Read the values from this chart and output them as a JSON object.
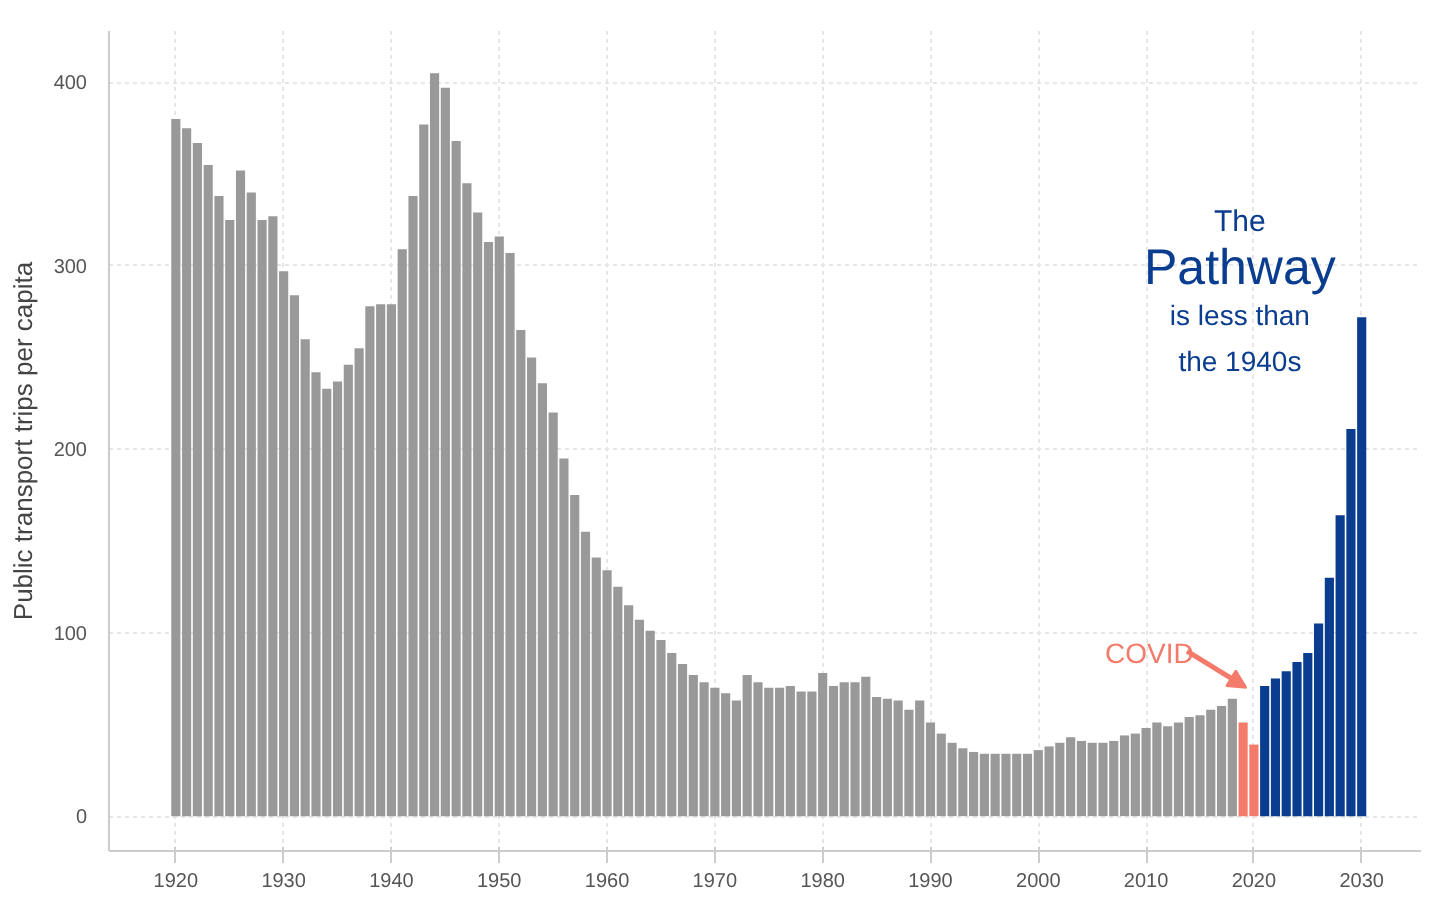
{
  "chart_data": {
    "type": "bar",
    "ylabel": "Public transport trips per capita",
    "xlim": [
      1913.8,
      2035.5
    ],
    "xticks": [
      1920,
      1930,
      1940,
      1950,
      1960,
      1970,
      1980,
      1990,
      2000,
      2010,
      2020,
      2030
    ],
    "ylim": [
      -19,
      428
    ],
    "yticks": [
      0,
      100,
      200,
      300,
      400
    ],
    "grid": true,
    "series": [
      {
        "color": "#999999",
        "x": [
          1920,
          1921,
          1922,
          1923,
          1924,
          1925,
          1926,
          1927,
          1928,
          1929,
          1930,
          1931,
          1932,
          1933,
          1934,
          1935,
          1936,
          1937,
          1938,
          1939,
          1940,
          1941,
          1942,
          1943,
          1944,
          1945,
          1946,
          1947,
          1948,
          1949,
          1950,
          1951,
          1952,
          1953,
          1954,
          1955,
          1956,
          1957,
          1958,
          1959,
          1960,
          1961,
          1962,
          1963,
          1964,
          1965,
          1966,
          1967,
          1968,
          1969,
          1970,
          1971,
          1972,
          1973,
          1974,
          1975,
          1976,
          1977,
          1978,
          1979,
          1980,
          1981,
          1982,
          1983,
          1984,
          1985,
          1986,
          1987,
          1988,
          1989,
          1990,
          1991,
          1992,
          1993,
          1994,
          1995,
          1996,
          1997,
          1998,
          1999,
          2000,
          2001,
          2002,
          2003,
          2004,
          2005,
          2006,
          2007,
          2008,
          2009,
          2010,
          2011,
          2012,
          2013,
          2014,
          2015,
          2016,
          2017,
          2018
        ],
        "values": [
          380,
          375,
          367,
          355,
          338,
          325,
          352,
          340,
          325,
          327,
          297,
          284,
          260,
          242,
          233,
          237,
          246,
          255,
          278,
          279,
          279,
          309,
          338,
          377,
          405,
          397,
          368,
          345,
          329,
          313,
          316,
          307,
          265,
          250,
          236,
          220,
          195,
          175,
          155,
          141,
          134,
          125,
          115,
          107,
          101,
          96,
          89,
          83,
          77,
          73,
          70,
          67,
          63,
          77,
          73,
          70,
          70,
          71,
          68,
          68,
          78,
          71,
          73,
          73,
          76,
          65,
          64,
          63,
          58,
          63,
          51,
          45,
          40,
          37,
          35,
          34,
          34,
          34,
          34,
          34,
          36,
          38,
          40,
          43,
          41,
          40,
          40,
          41,
          44,
          45,
          48,
          51,
          49,
          51,
          54,
          55,
          58,
          60,
          64
        ]
      },
      {
        "color": "#f47a6b",
        "x": [
          2019,
          2020
        ],
        "values": [
          51,
          39
        ]
      },
      {
        "color": "#0a3d8f",
        "x": [
          2021,
          2022,
          2023,
          2024,
          2025,
          2026,
          2027,
          2028,
          2029,
          2030
        ],
        "values": [
          71,
          75,
          79,
          84,
          89,
          105,
          130,
          164,
          211,
          272
        ]
      }
    ],
    "annotations": [
      "COVID",
      "The",
      "Pathway",
      "is less than",
      "the 1940s"
    ]
  }
}
